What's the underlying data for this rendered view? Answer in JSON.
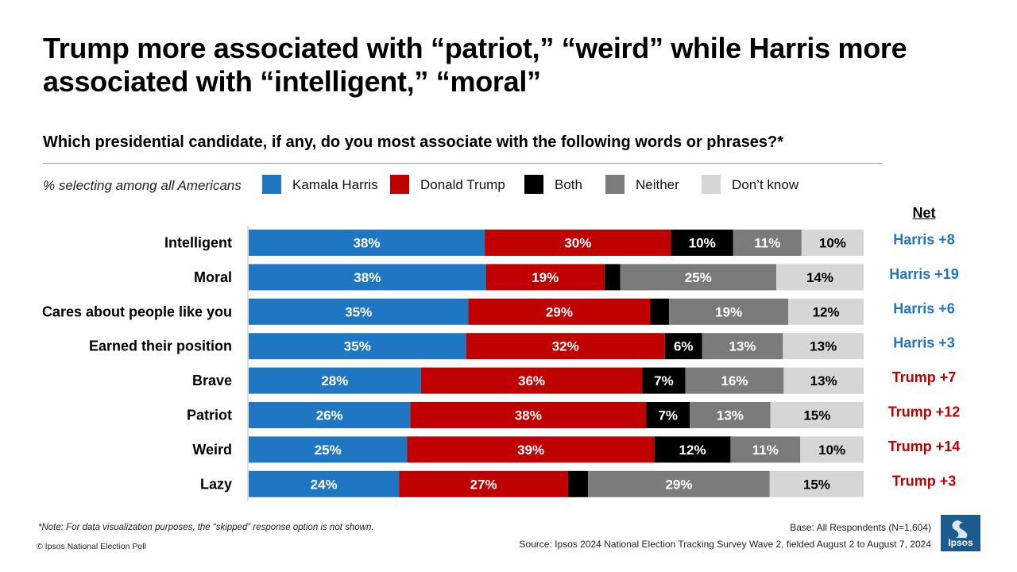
{
  "header": {
    "title": "Trump more associated with “patriot,” “weird” while Harris more associated with “intelligent,” “moral”",
    "subtitle": "Which presidential candidate, if any, do you most associate with the following words or phrases?*",
    "legend_note": "% selecting among all Americans"
  },
  "colors": {
    "harris": "#1f77c4",
    "trump": "#c00000",
    "both": "#000000",
    "neither": "#7b7b7b",
    "dont_know": "#d6d6d6",
    "net_harris": "#2176c3",
    "net_trump": "#c00000"
  },
  "chart_data": {
    "type": "bar",
    "orientation": "horizontal",
    "stacked": true,
    "net_header": "Net",
    "categories": [
      "Intelligent",
      "Moral",
      "Cares about people like you",
      "Earned their position",
      "Brave",
      "Patriot",
      "Weird",
      "Lazy"
    ],
    "series": [
      {
        "name": "Kamala Harris",
        "key": "harris",
        "values": [
          38,
          38,
          35,
          35,
          28,
          26,
          25,
          24
        ],
        "labels": [
          "38%",
          "38%",
          "35%",
          "35%",
          "28%",
          "26%",
          "25%",
          "24%"
        ]
      },
      {
        "name": "Donald Trump",
        "key": "trump",
        "values": [
          30,
          19,
          29,
          32,
          36,
          38,
          39,
          27
        ],
        "labels": [
          "30%",
          "19%",
          "29%",
          "32%",
          "36%",
          "38%",
          "39%",
          "27%"
        ]
      },
      {
        "name": "Both",
        "key": "both",
        "values": [
          10,
          2.5,
          3,
          6,
          7,
          7,
          12,
          3.2
        ],
        "labels": [
          "10%",
          "",
          "",
          "6%",
          "7%",
          "7%",
          "12%",
          ""
        ]
      },
      {
        "name": "Neither",
        "key": "neither",
        "values": [
          11,
          25,
          19,
          13,
          16,
          13,
          11,
          29
        ],
        "labels": [
          "11%",
          "25%",
          "19%",
          "13%",
          "16%",
          "13%",
          "11%",
          "29%"
        ]
      },
      {
        "name": "Don’t know",
        "key": "dont_know",
        "values": [
          10,
          14,
          12,
          13,
          13,
          15,
          10,
          15
        ],
        "labels": [
          "10%",
          "14%",
          "12%",
          "13%",
          "13%",
          "15%",
          "10%",
          "15%"
        ]
      }
    ],
    "net": [
      {
        "label": "Harris +8",
        "side": "harris"
      },
      {
        "label": "Harris +19",
        "side": "harris"
      },
      {
        "label": "Harris +6",
        "side": "harris"
      },
      {
        "label": "Harris +3",
        "side": "harris"
      },
      {
        "label": "Trump +7",
        "side": "trump"
      },
      {
        "label": "Trump +12",
        "side": "trump"
      },
      {
        "label": "Trump +14",
        "side": "trump"
      },
      {
        "label": "Trump +3",
        "side": "trump"
      }
    ]
  },
  "footer": {
    "note": "*Note: For data visualization purposes, the “skipped” response option is not shown.",
    "copyright": "© Ipsos National Election Poll",
    "base": "Base: All Respondents (N=1,604)",
    "source": "Source: Ipsos 2024 National Election Tracking Survey Wave 2, fielded August 2 to August 7, 2024",
    "logo_text": "Ipsos"
  }
}
